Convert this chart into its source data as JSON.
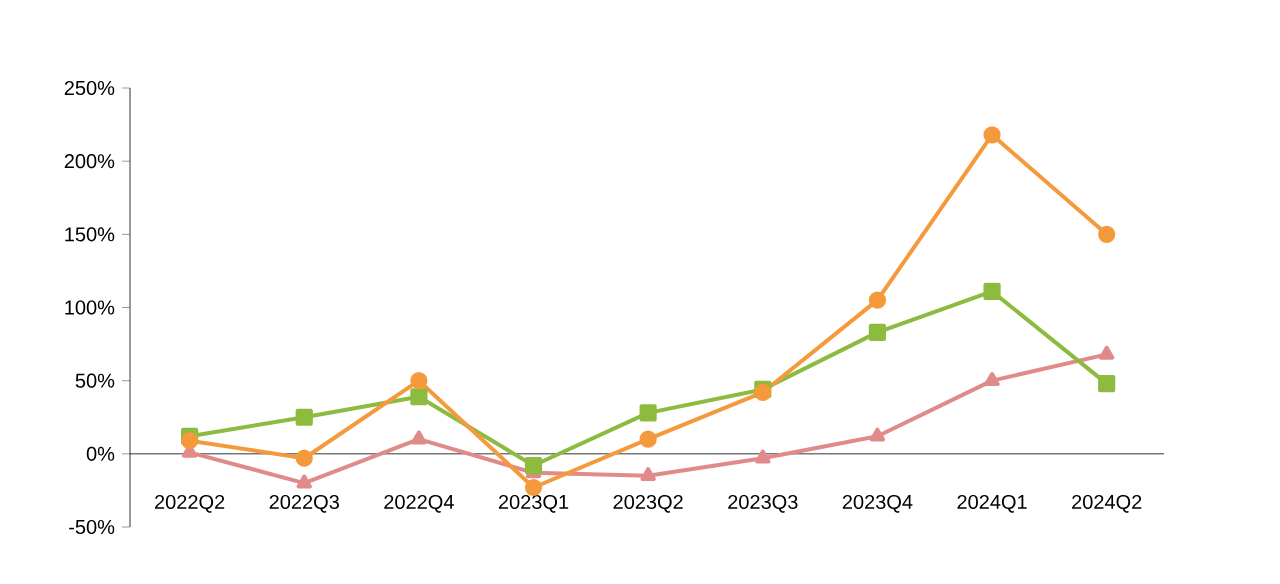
{
  "chart_data": {
    "type": "line",
    "categories": [
      "2022Q2",
      "2022Q3",
      "2022Q4",
      "2023Q1",
      "2023Q2",
      "2023Q3",
      "2023Q4",
      "2024Q1",
      "2024Q2"
    ],
    "series": [
      {
        "color": "#f59a3c",
        "marker": "circle",
        "values": [
          9,
          -3,
          50,
          -23,
          10,
          42,
          105,
          218,
          150
        ]
      },
      {
        "color": "#8dbb3f",
        "marker": "square",
        "values": [
          12,
          25,
          39,
          -8,
          28,
          44,
          83,
          111,
          48
        ]
      },
      {
        "color": "#e08a8a",
        "marker": "triangle",
        "values": [
          1,
          -20,
          10,
          -13,
          -15,
          -3,
          12,
          50,
          68
        ]
      }
    ],
    "ylim": [
      -50,
      250
    ],
    "yticks": [
      {
        "value": -50,
        "label": "-50%"
      },
      {
        "value": 0,
        "label": "0%"
      },
      {
        "value": 50,
        "label": "50%"
      },
      {
        "value": 100,
        "label": "100%"
      },
      {
        "value": 150,
        "label": "150%"
      },
      {
        "value": 200,
        "label": "200%"
      },
      {
        "value": 250,
        "label": "250%"
      }
    ],
    "grid": false,
    "line_style": "solid"
  }
}
